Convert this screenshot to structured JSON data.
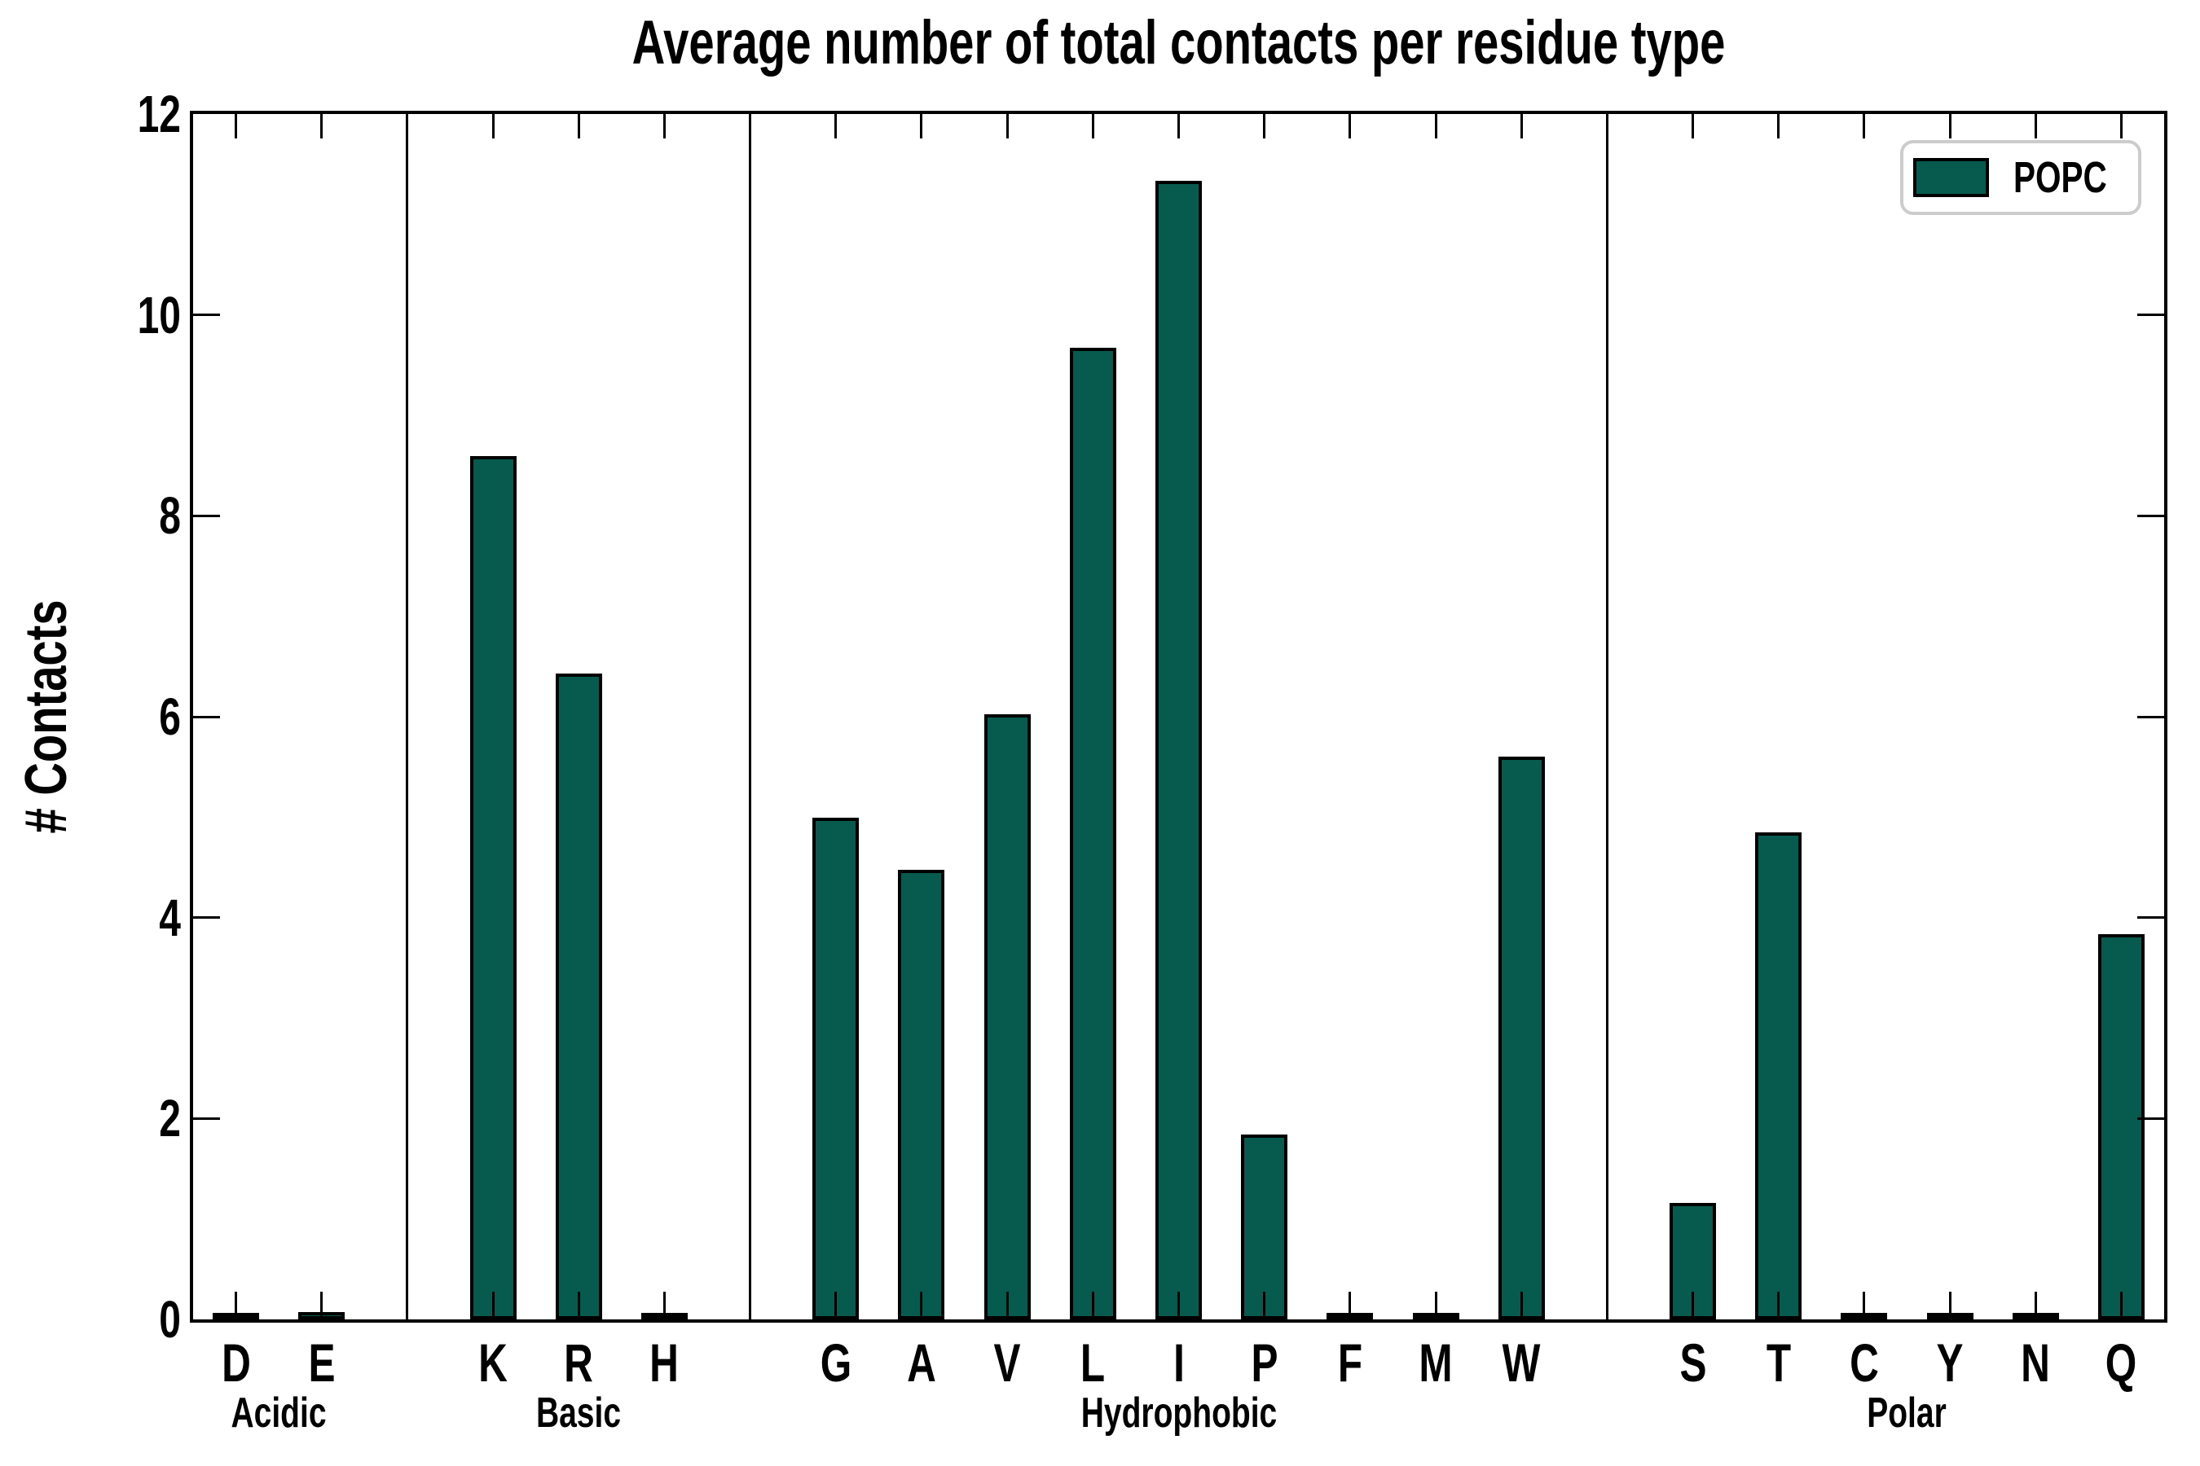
{
  "title": "Average number of total contacts per residue type",
  "ylabel": "# Contacts",
  "legend": {
    "label": "POPC"
  },
  "colors": {
    "bar_fill": "#065a4e",
    "bar_edge": "#000000",
    "axis": "#000000",
    "legend_border": "#cccccc",
    "background": "#ffffff"
  },
  "chart_data": {
    "type": "bar",
    "title": "Average number of total contacts per residue type",
    "xlabel": "",
    "ylabel": "# Contacts",
    "ylim": [
      0,
      12
    ],
    "yticks": [
      0,
      2,
      4,
      6,
      8,
      10,
      12
    ],
    "grid": false,
    "legend_position": "upper right",
    "series_name": "POPC",
    "groups": [
      {
        "label": "Acidic",
        "categories": [
          "D",
          "E"
        ],
        "values": [
          0.03,
          0.04
        ]
      },
      {
        "label": "Basic",
        "categories": [
          "K",
          "R",
          "H"
        ],
        "values": [
          8.56,
          6.4,
          0.03
        ]
      },
      {
        "label": "Hydrophobic",
        "categories": [
          "G",
          "A",
          "V",
          "L",
          "I",
          "P",
          "F",
          "M",
          "W"
        ],
        "values": [
          4.96,
          4.44,
          5.99,
          9.64,
          11.3,
          1.81,
          0.03,
          0.03,
          5.57
        ]
      },
      {
        "label": "Polar",
        "categories": [
          "S",
          "T",
          "C",
          "Y",
          "N",
          "Q"
        ],
        "values": [
          1.13,
          4.82,
          0.01,
          0.02,
          0.03,
          3.8
        ]
      }
    ]
  }
}
